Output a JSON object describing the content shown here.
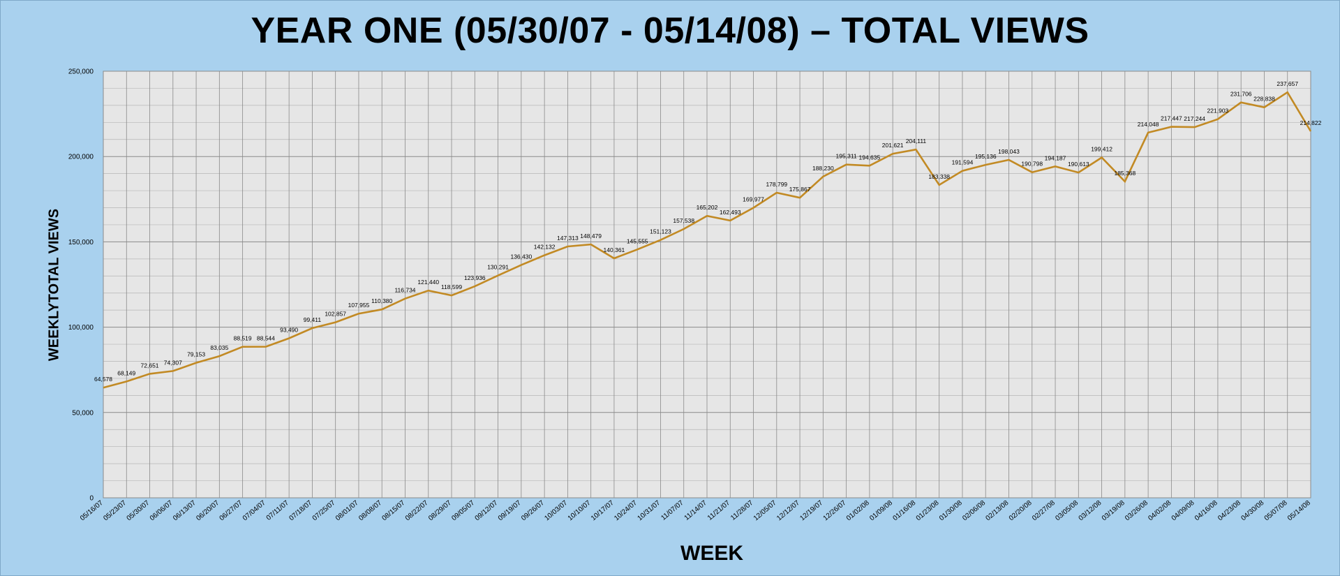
{
  "colors": {
    "background": "#a9d1ee",
    "plot_area": "#e6e6e6",
    "grid_major": "#8a8a8a",
    "grid_minor": "#b5b5b5",
    "line": "#c28a24"
  },
  "chart_data": {
    "type": "line",
    "title": "YEAR ONE (05/30/07 - 05/14/08) – TOTAL VIEWS",
    "xlabel": "WEEK",
    "ylabel": "WEEKLYTOTAL VIEWS",
    "ylim": [
      0,
      250000
    ],
    "yticks": [
      0,
      50000,
      100000,
      150000,
      200000,
      250000
    ],
    "ytick_labels": [
      "0",
      "50,000",
      "100,000",
      "150,000",
      "200,000",
      "250,000"
    ],
    "grid": true,
    "legend": "none",
    "categories": [
      "05/16/07",
      "05/23/07",
      "05/30/07",
      "06/06/07",
      "06/13/07",
      "06/20/07",
      "06/27/07",
      "07/04/07",
      "07/11/07",
      "07/18/07",
      "07/25/07",
      "08/01/07",
      "08/08/07",
      "08/15/07",
      "08/22/07",
      "08/29/07",
      "09/05/07",
      "09/12/07",
      "09/19/07",
      "09/26/07",
      "10/03/07",
      "10/10/07",
      "10/17/07",
      "10/24/07",
      "10/31/07",
      "11/07/07",
      "11/14/07",
      "11/21/07",
      "11/28/07",
      "12/05/07",
      "12/12/07",
      "12/19/07",
      "12/26/07",
      "01/02/08",
      "01/09/08",
      "01/16/08",
      "01/23/08",
      "01/30/08",
      "02/06/08",
      "02/13/08",
      "02/20/08",
      "02/27/08",
      "03/05/08",
      "03/12/08",
      "03/19/08",
      "03/26/08",
      "04/02/08",
      "04/09/08",
      "04/16/08",
      "04/23/08",
      "04/30/08",
      "05/07/08",
      "05/14/08"
    ],
    "values": [
      64578,
      68149,
      72651,
      74307,
      79153,
      83035,
      88519,
      88544,
      93490,
      99411,
      102857,
      107955,
      110380,
      116734,
      121440,
      118599,
      123936,
      130291,
      136430,
      142132,
      147313,
      148479,
      140361,
      145555,
      151123,
      157538,
      165202,
      162493,
      169977,
      178799,
      175867,
      188230,
      195311,
      194635,
      201621,
      204111,
      183338,
      191594,
      195136,
      198043,
      190798,
      194187,
      190613,
      199412,
      185368,
      214048,
      217447,
      217244,
      221903,
      231706,
      228838,
      237657,
      214822
    ],
    "data_labels": [
      "64,578",
      "68,149",
      "72,651",
      "74,307",
      "79,153",
      "83,035",
      "88,519",
      "88,544",
      "93,490",
      "99,411",
      "102,857",
      "107,955",
      "110,380",
      "116,734",
      "121,440",
      "118,599",
      "123,936",
      "130,291",
      "136,430",
      "142,132",
      "147,313",
      "148,479",
      "140,361",
      "145,555",
      "151,123",
      "157,538",
      "165,202",
      "162,493",
      "169,977",
      "178,799",
      "175,867",
      "188,230",
      "195,311",
      "194,635",
      "201,621",
      "204,111",
      "183,338",
      "191,594",
      "195,136",
      "198,043",
      "190,798",
      "194,187",
      "190,613",
      "199,412",
      "185,368",
      "214,048",
      "217,447",
      "217,244",
      "221,903",
      "231,706",
      "228,838",
      "237,657",
      "214,822"
    ]
  }
}
